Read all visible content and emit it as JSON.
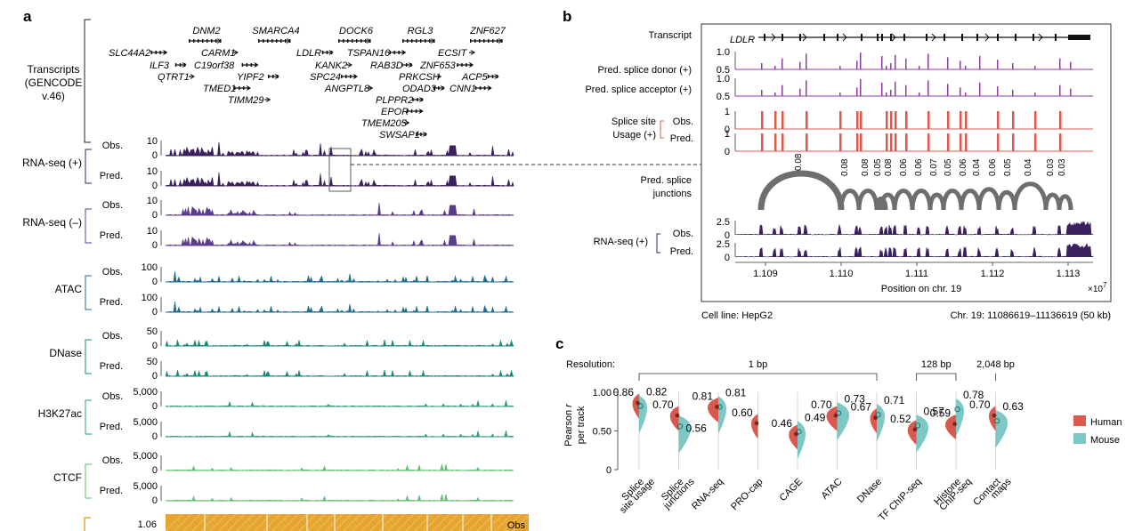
{
  "panel_labels": {
    "a": "a",
    "b": "b",
    "c": "c"
  },
  "panel_a": {
    "transcripts_label": [
      "Transcripts",
      "(GENCODE",
      "v.46)"
    ],
    "genes": [
      "DNM2",
      "SMARCA4",
      "DOCK6",
      "RGL3",
      "ZNF627",
      "SLC44A2",
      "CARM1",
      "LDLR",
      "TSPAN16",
      "ECSIT",
      "ILF3",
      "C19orf38",
      "KANK2",
      "RAB3D",
      "ZNF653",
      "QTRT1",
      "YIPF2",
      "SPC24",
      "PRKCSH",
      "ACP5",
      "TMED1",
      "ANGPTL8",
      "ODAD3",
      "CNN1",
      "TIMM29",
      "PLPPR2",
      "EPOR",
      "TMEM205",
      "SWSAP1"
    ],
    "obs_label": "Obs.",
    "pred_label": "Pred.",
    "tracks": [
      {
        "name": "RNA-seq (+)",
        "ticks": [
          "10",
          "0"
        ],
        "color": "#3b1f5e"
      },
      {
        "name": "RNA-seq (–)",
        "ticks": [
          "10",
          "0"
        ],
        "color": "#5a3d8a"
      },
      {
        "name": "ATAC",
        "ticks": [
          "100",
          "0"
        ],
        "color": "#1f6e8c"
      },
      {
        "name": "DNase",
        "ticks": [
          "50",
          "0"
        ],
        "color": "#1b8a7a"
      },
      {
        "name": "H3K27ac",
        "ticks": [
          "5,000",
          "0"
        ],
        "color": "#2e9e6e"
      },
      {
        "name": "CTCF",
        "ticks": [
          "5,000",
          "0"
        ],
        "color": "#5cbf6a"
      }
    ],
    "contact": {
      "tick": "1.06",
      "label": "Obs",
      "bracket_color": "#e8a73a"
    }
  },
  "panel_b": {
    "transcript_label": "Transcript",
    "gene": "LDLR",
    "rows": [
      "Pred. splice donor (+)",
      "Pred. splice acceptor (+)",
      "Splice site",
      "Usage (+)",
      "Obs.",
      "Pred.",
      "Pred. splice",
      "junctions",
      "RNA-seq (+)",
      "Obs.",
      "Pred."
    ],
    "ticks_splice": [
      "1.0",
      "0.5"
    ],
    "ticks_usage": [
      "1",
      "0"
    ],
    "ticks_rna": [
      "2.5",
      "0"
    ],
    "junction_values": [
      "0.08",
      "0.08",
      "0.08",
      "0.05",
      "0.08",
      "0.06",
      "0.06",
      "0.07",
      "0.05",
      "0.06",
      "0.04",
      "0.06",
      "0.05",
      "0.04",
      "0.03",
      "0.03"
    ],
    "x_ticks": [
      "1.109",
      "1.110",
      "1.111",
      "1.112",
      "1.113"
    ],
    "x_label": "Position on chr. 19",
    "x_exp": "×10",
    "x_exp_pow": "7",
    "cell_line": "Cell line: HepG2",
    "region": "Chr. 19: 11086619–11136619 (50 kb)"
  },
  "chart_data": {
    "type": "violin",
    "title": "",
    "ylabel": "Pearson r per track",
    "ylabel_parts": [
      "Pearson ",
      "r",
      "per track"
    ],
    "ylim": [
      0,
      1
    ],
    "yticks": [
      "0",
      "0.50",
      "1.00"
    ],
    "resolution_label": "Resolution:",
    "resolutions": [
      {
        "label": "1 bp",
        "span": [
          0,
          6
        ]
      },
      {
        "label": "128 bp",
        "span": [
          7,
          8
        ]
      },
      {
        "label": "2,048 bp",
        "span": [
          9,
          9
        ]
      }
    ],
    "categories": [
      "Splice site usage",
      "Splice junctions",
      "RNA-seq",
      "PRO-cap",
      "CAGE",
      "ATAC",
      "DNase",
      "TF ChIP-seq",
      "Histone ChIP-seq",
      "Contact maps"
    ],
    "category_lines": [
      [
        "Splice",
        "site usage"
      ],
      [
        "Splice",
        "junctions"
      ],
      [
        "RNA-seq"
      ],
      [
        "PRO-cap"
      ],
      [
        "CAGE"
      ],
      [
        "ATAC"
      ],
      [
        "DNase"
      ],
      [
        "TF ChIP-seq"
      ],
      [
        "Histone",
        "ChIP-seq"
      ],
      [
        "Contact",
        "maps"
      ]
    ],
    "series": [
      {
        "name": "Human",
        "color": "#d9594f",
        "values": [
          0.86,
          0.7,
          0.81,
          0.6,
          0.46,
          0.7,
          0.67,
          0.52,
          0.59,
          0.7
        ],
        "labels": [
          "0.86",
          "0.70",
          "0.81",
          "0.60",
          "0.46",
          "0.70",
          "0.67",
          "0.52",
          "0.59",
          "0.70"
        ]
      },
      {
        "name": "Mouse",
        "color": "#7dc8c4",
        "values": [
          0.82,
          0.56,
          0.81,
          null,
          0.49,
          0.73,
          0.71,
          0.57,
          0.78,
          0.63
        ],
        "labels": [
          "0.82",
          "0.56",
          "0.81",
          "",
          "0.49",
          "0.73",
          "0.71",
          "0.57",
          "0.78",
          "0.63"
        ]
      }
    ],
    "legend": [
      "Human",
      "Mouse"
    ],
    "legend_position": "right"
  }
}
